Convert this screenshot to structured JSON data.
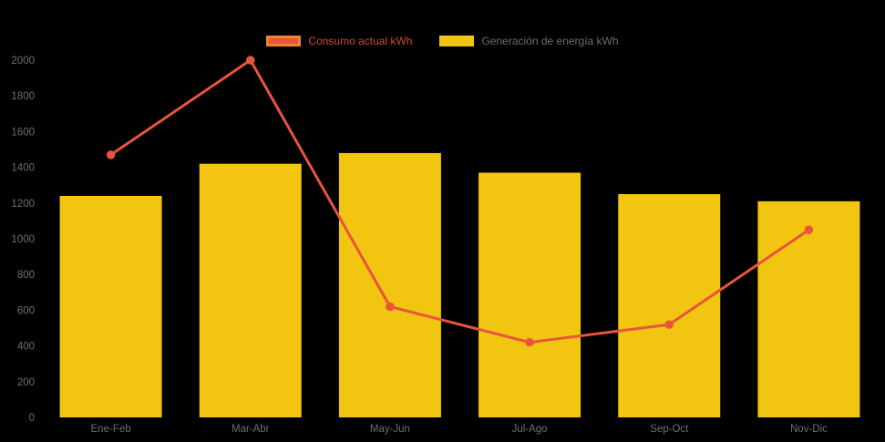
{
  "chart_data": {
    "type": "bar+line",
    "title": "",
    "categories": [
      "Ene-Feb",
      "Mar-Abr",
      "May-Jun",
      "Jul-Ago",
      "Sep-Oct",
      "Nov-Dic"
    ],
    "series": [
      {
        "name": "Consumo actual kWh",
        "type": "line",
        "color": "#e8543c",
        "swatch_border": "#ef8434",
        "label_color": "#cf4a33",
        "values": [
          1470,
          2000,
          620,
          420,
          520,
          1050
        ]
      },
      {
        "name": "Generación de energía kWh",
        "type": "bar",
        "color": "#f2c511",
        "swatch_border": "#f2c511",
        "label_color": "#6e6e6e",
        "values": [
          1240,
          1420,
          1480,
          1370,
          1250,
          1210
        ]
      }
    ],
    "ylim": [
      0,
      2000
    ],
    "ytick_step": 200,
    "yticks": [
      0,
      200,
      400,
      600,
      800,
      1000,
      1200,
      1400,
      1600,
      1800,
      2000
    ],
    "tick_color": "#6f6f6f",
    "grid": false,
    "legend_position": "top",
    "background": "#000000"
  }
}
